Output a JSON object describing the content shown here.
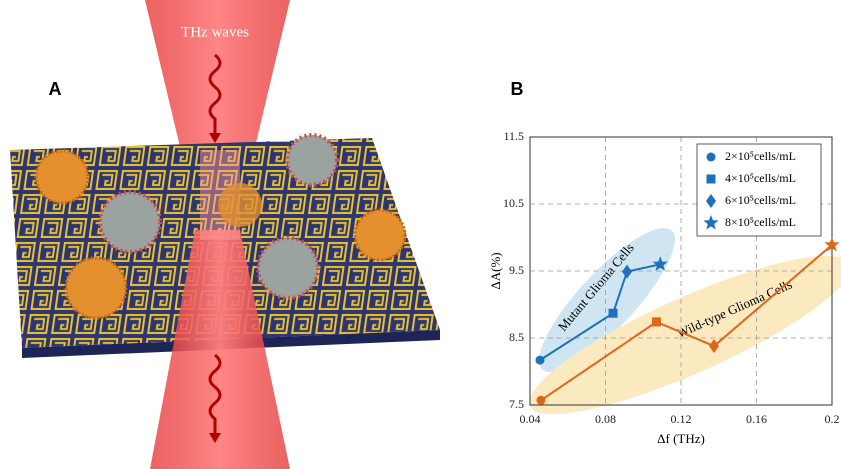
{
  "labels": {
    "panel_a": "A",
    "panel_b": "B",
    "beam": "THz waves"
  },
  "chart_data": {
    "type": "line",
    "x_label": "Δf (THz)",
    "y_label": "ΔA(%)",
    "xlim": [
      0.04,
      0.2
    ],
    "xticks": [
      0.04,
      0.08,
      0.12,
      0.16,
      0.2
    ],
    "ylim": [
      7.5,
      11.5
    ],
    "yticks": [
      7.5,
      8.5,
      9.5,
      10.5,
      11.5
    ],
    "grid": true,
    "legend": "upper right",
    "legend_entries": [
      "2×10⁵cells/mL",
      "4×10⁵cells/mL",
      "6×10⁵cells/mL",
      "8×10⁵cells/mL"
    ],
    "markers": [
      "circle",
      "square",
      "diamond",
      "star"
    ],
    "legend_color": "#1f6fbf",
    "series": [
      {
        "name": "Mutant Glioma Cells",
        "color": "#1f6fbf",
        "band_color": "#cfe6f2",
        "x": [
          0.0453,
          0.084,
          0.0914,
          0.109
        ],
        "values": [
          8.17,
          8.87,
          9.49,
          9.6
        ]
      },
      {
        "name": "Wild-type Glioma Cells",
        "color": "#e0661a",
        "band_color": "#fbeac0",
        "x": [
          0.0458,
          0.107,
          0.1375,
          0.2
        ],
        "values": [
          7.57,
          8.74,
          8.38,
          9.89
        ]
      }
    ]
  }
}
